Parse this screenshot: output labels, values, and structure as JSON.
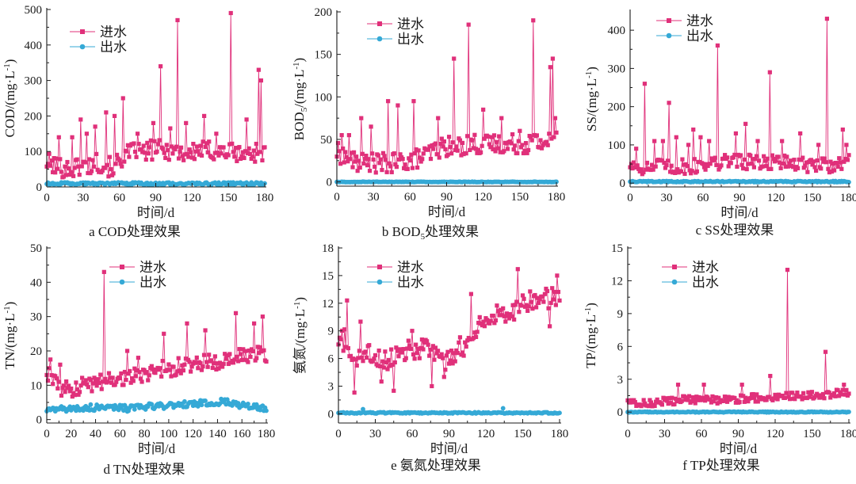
{
  "colors": {
    "inflow": "#e0307a",
    "outflow": "#35a9d6",
    "axis": "#1a1a1a"
  },
  "legend": {
    "in": "进水",
    "out": "出水"
  },
  "chart_data": [
    {
      "type": "line",
      "caption": "a COD处理效果",
      "ylabel_main": "COD/(mg·L",
      "ylabel_sup": "-1",
      "ylabel_tail": ")",
      "xlabel": "时间/d",
      "xlim": [
        0,
        180
      ],
      "xticks": [
        0,
        30,
        60,
        90,
        120,
        150,
        180
      ],
      "ylim": [
        0,
        500
      ],
      "yticks": [
        0,
        100,
        200,
        300,
        400,
        500
      ],
      "series": [
        {
          "name": "进水",
          "base": [
            70,
            60,
            55,
            50,
            55,
            60,
            60,
            70,
            60,
            55,
            75,
            90,
            100,
            95,
            100,
            110,
            100,
            105,
            100,
            95,
            95,
            105,
            105,
            100,
            100,
            100,
            95,
            95,
            95,
            100,
            100
          ],
          "spikes": [
            [
              10,
              140
            ],
            [
              21,
              140
            ],
            [
              28,
              190
            ],
            [
              33,
              150
            ],
            [
              40,
              170
            ],
            [
              49,
              210
            ],
            [
              56,
              200
            ],
            [
              63,
              250
            ],
            [
              75,
              150
            ],
            [
              88,
              180
            ],
            [
              94,
              340
            ],
            [
              102,
              165
            ],
            [
              108,
              470
            ],
            [
              115,
              180
            ],
            [
              130,
              200
            ],
            [
              140,
              150
            ],
            [
              152,
              490
            ],
            [
              165,
              190
            ],
            [
              175,
              330
            ],
            [
              177,
              300
            ]
          ],
          "amp": 28,
          "min": 15
        },
        {
          "name": "出水",
          "level": 9,
          "amp": 4
        }
      ]
    },
    {
      "type": "line",
      "caption": "b BOD5处理效果",
      "ylabel_main": "BOD",
      "ylabel_sub": "5",
      "ylabel_mid": "/(mg·L",
      "ylabel_sup": "-1",
      "ylabel_tail": ")",
      "xlabel": "时间/d",
      "xlim": [
        0,
        180
      ],
      "xticks": [
        0,
        30,
        60,
        90,
        120,
        150,
        180
      ],
      "ylim": [
        -5,
        200
      ],
      "yticks": [
        0,
        50,
        100,
        150,
        200
      ],
      "series": [
        {
          "name": "进水",
          "base": [
            35,
            30,
            25,
            22,
            22,
            22,
            22,
            22,
            22,
            25,
            25,
            28,
            30,
            35,
            40,
            42,
            40,
            42,
            45,
            45,
            42,
            45,
            45,
            42,
            45,
            45,
            45,
            48,
            45,
            50,
            50
          ],
          "spikes": [
            [
              4,
              55
            ],
            [
              10,
              55
            ],
            [
              20,
              75
            ],
            [
              28,
              65
            ],
            [
              42,
              95
            ],
            [
              50,
              90
            ],
            [
              63,
              95
            ],
            [
              83,
              75
            ],
            [
              96,
              145
            ],
            [
              108,
              185
            ],
            [
              120,
              85
            ],
            [
              135,
              75
            ],
            [
              150,
              60
            ],
            [
              161,
              190
            ],
            [
              175,
              135
            ],
            [
              177,
              145
            ],
            [
              179,
              75
            ]
          ],
          "amp": 12,
          "min": 8
        },
        {
          "name": "出水",
          "level": 0,
          "amp": 0.3
        }
      ]
    },
    {
      "type": "line",
      "caption": "c SS处理效果",
      "ylabel_main": "SS/(mg·L",
      "ylabel_sup": "-1",
      "ylabel_tail": ")",
      "xlabel": "时间/d",
      "xlim": [
        0,
        180
      ],
      "xticks": [
        0,
        30,
        60,
        90,
        120,
        150,
        180
      ],
      "ylim": [
        -10,
        450
      ],
      "yticks": [
        0,
        100,
        200,
        300,
        400
      ],
      "series": [
        {
          "name": "进水",
          "base": [
            50,
            45,
            40,
            40,
            45,
            40,
            40,
            45,
            40,
            45,
            50,
            55,
            50,
            55,
            60,
            60,
            55,
            60,
            55,
            55,
            60,
            55,
            50,
            50,
            45,
            45,
            50,
            45,
            50,
            50,
            55
          ],
          "spikes": [
            [
              5,
              90
            ],
            [
              12,
              260
            ],
            [
              20,
              110
            ],
            [
              27,
              110
            ],
            [
              32,
              210
            ],
            [
              38,
              120
            ],
            [
              48,
              100
            ],
            [
              52,
              140
            ],
            [
              58,
              120
            ],
            [
              65,
              110
            ],
            [
              72,
              360
            ],
            [
              87,
              130
            ],
            [
              95,
              155
            ],
            [
              105,
              110
            ],
            [
              115,
              290
            ],
            [
              125,
              110
            ],
            [
              140,
              130
            ],
            [
              155,
              100
            ],
            [
              162,
              430
            ],
            [
              175,
              140
            ],
            [
              178,
              100
            ]
          ],
          "amp": 20,
          "min": 5
        },
        {
          "name": "出水",
          "level": 4,
          "amp": 1.5
        }
      ]
    },
    {
      "type": "line",
      "caption": "d TN处理效果",
      "ylabel_main": "TN/(mg·L",
      "ylabel_sup": "-1",
      "ylabel_tail": ")",
      "xlabel": "时间/d",
      "xlim": [
        0,
        180
      ],
      "xticks": [
        0,
        20,
        40,
        60,
        80,
        100,
        120,
        140,
        160,
        180
      ],
      "ylim": [
        -1,
        50
      ],
      "yticks": [
        0,
        10,
        20,
        30,
        40,
        50
      ],
      "series": [
        {
          "name": "进水",
          "base": [
            14,
            11,
            9,
            8.5,
            9,
            10,
            10,
            11,
            11.5,
            12,
            12,
            12.5,
            13,
            13,
            14,
            14.5,
            15,
            15,
            15.5,
            16,
            16,
            16.5,
            17,
            17,
            17.5,
            18,
            18,
            18.5,
            18.5,
            19,
            19
          ],
          "spikes": [
            [
              3,
              17.5
            ],
            [
              11,
              16
            ],
            [
              47,
              43
            ],
            [
              66,
              20
            ],
            [
              75,
              18
            ],
            [
              96,
              25
            ],
            [
              115,
              28
            ],
            [
              130,
              26
            ],
            [
              155,
              31
            ],
            [
              170,
              28
            ],
            [
              177,
              30
            ]
          ],
          "amp": 2.5,
          "min": 4
        },
        {
          "name": "出水",
          "base": [
            2.5,
            3,
            3,
            3.2,
            3,
            3.5,
            3.5,
            3.5,
            4,
            3.5,
            3.5,
            3.2,
            3.5,
            3.5,
            3.8,
            3.8,
            4,
            4,
            4.2,
            4.5,
            4.5,
            4.8,
            5,
            5,
            5.2,
            5,
            4.5,
            4,
            3.5,
            3.5,
            3
          ],
          "amp": 0.9,
          "min": 0.5
        }
      ]
    },
    {
      "type": "line",
      "caption": "e 氨氮处理效果",
      "ylabel_main": "氨氮/(mg·L",
      "ylabel_sup": "-1",
      "ylabel_tail": ")",
      "xlabel": "时间/d",
      "xlim": [
        0,
        180
      ],
      "xticks": [
        0,
        30,
        60,
        90,
        120,
        150,
        180
      ],
      "ylim": [
        -1,
        18
      ],
      "yticks": [
        0,
        3,
        6,
        9,
        12,
        15,
        18
      ],
      "series": [
        {
          "name": "进水",
          "base": [
            8,
            8,
            5.5,
            6,
            6.5,
            6,
            6,
            6,
            6.5,
            7,
            7,
            7,
            7,
            6.5,
            5.5,
            6,
            7,
            7.5,
            8.5,
            9.5,
            10,
            10.5,
            11,
            11,
            11.5,
            12,
            12.5,
            12.5,
            12.5,
            12.5,
            13
          ],
          "spikes": [
            [
              7,
              12.3
            ],
            [
              13,
              2.3
            ],
            [
              18,
              10
            ],
            [
              35,
              3.5
            ],
            [
              45,
              2.5
            ],
            [
              60,
              9
            ],
            [
              76,
              3
            ],
            [
              86,
              4
            ],
            [
              108,
              13
            ],
            [
              146,
              15.7
            ],
            [
              172,
              9.5
            ],
            [
              178,
              15
            ]
          ],
          "amp": 1.2,
          "min": 1.5
        },
        {
          "name": "出水",
          "level": 0.1,
          "amp": 0.07,
          "spikes": [
            [
              20,
              0.5
            ],
            [
              134,
              0.6
            ]
          ]
        }
      ]
    },
    {
      "type": "line",
      "caption": "f TP处理效果",
      "ylabel_main": "TP/(mg·L",
      "ylabel_sup": "-1",
      "ylabel_tail": ")",
      "xlabel": "时间/d",
      "xlim": [
        0,
        180
      ],
      "xticks": [
        0,
        30,
        60,
        90,
        120,
        150,
        180
      ],
      "ylim": [
        -1,
        15
      ],
      "yticks": [
        0,
        3,
        6,
        9,
        12,
        15
      ],
      "series": [
        {
          "name": "进水",
          "base": [
            1.2,
            0.9,
            0.8,
            0.8,
            0.9,
            1,
            1,
            1,
            1.2,
            1.1,
            1.1,
            1.2,
            1.1,
            1.1,
            1.2,
            1.2,
            1.2,
            1.3,
            1.3,
            1.4,
            1.4,
            1.4,
            1.5,
            1.5,
            1.5,
            1.5,
            1.6,
            1.6,
            1.7,
            1.7,
            1.8
          ],
          "spikes": [
            [
              41,
              2.5
            ],
            [
              62,
              2.5
            ],
            [
              93,
              2.5
            ],
            [
              116,
              3.3
            ],
            [
              130,
              13
            ],
            [
              161,
              5.5
            ],
            [
              176,
              2.5
            ]
          ],
          "amp": 0.35,
          "min": 0.2
        },
        {
          "name": "出水",
          "level": 0,
          "amp": 0.04
        }
      ]
    }
  ]
}
